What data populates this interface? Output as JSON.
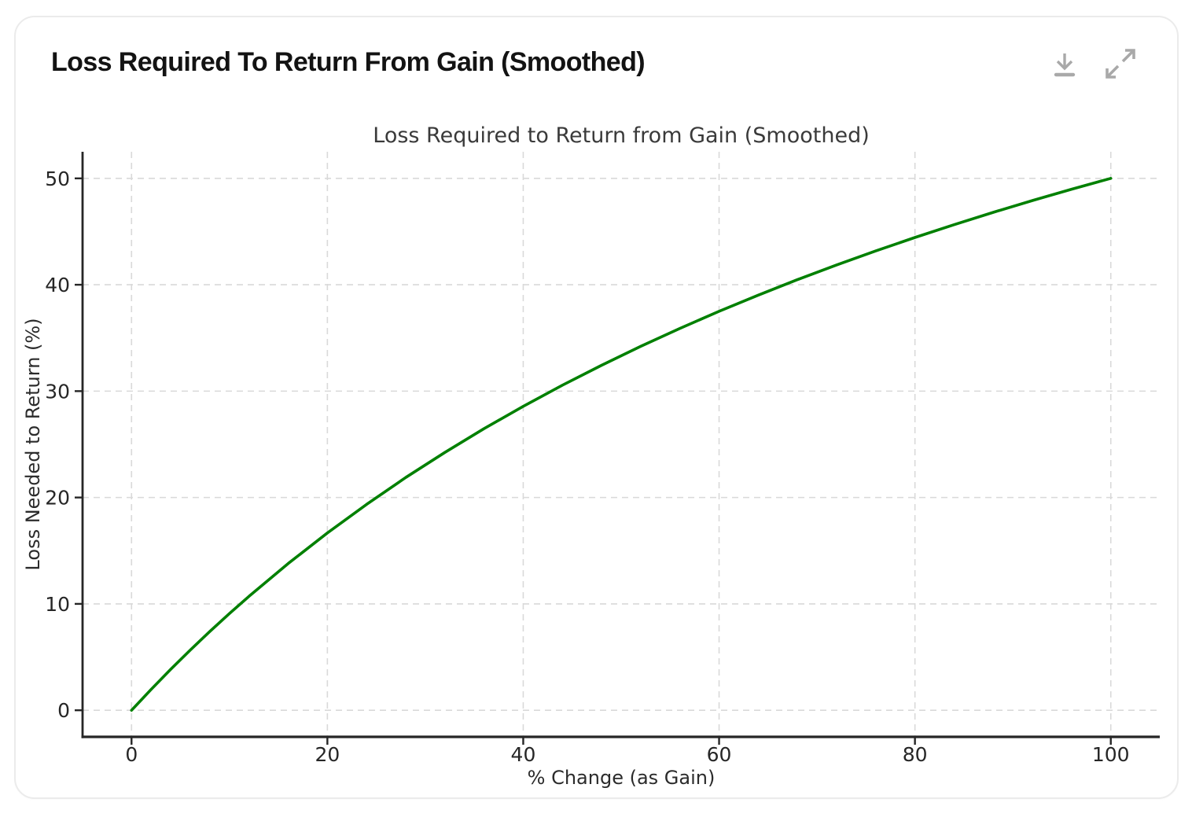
{
  "card": {
    "title": "Loss Required To Return From Gain (Smoothed)",
    "toolbar": {
      "icons": [
        "download-icon",
        "expand-icon"
      ],
      "icon_color": "#a9a9a9"
    }
  },
  "chart_data": {
    "type": "line",
    "title": "Loss Required to Return from Gain (Smoothed)",
    "xlabel": "% Change (as Gain)",
    "ylabel": "Loss Needed to Return (%)",
    "x": [
      0,
      2,
      4,
      6,
      8,
      10,
      12,
      16,
      20,
      24,
      28,
      32,
      36,
      40,
      44,
      48,
      52,
      56,
      60,
      64,
      68,
      72,
      76,
      80,
      84,
      88,
      92,
      96,
      100
    ],
    "y": [
      0,
      1.96,
      3.85,
      5.66,
      7.41,
      9.09,
      10.71,
      13.79,
      16.67,
      19.35,
      21.88,
      24.24,
      26.47,
      28.57,
      30.56,
      32.43,
      34.21,
      35.9,
      37.5,
      39.02,
      40.48,
      41.86,
      43.18,
      44.44,
      45.65,
      46.81,
      47.92,
      48.98,
      50
    ],
    "xticks": [
      0,
      20,
      40,
      60,
      80,
      100
    ],
    "yticks": [
      0,
      10,
      20,
      30,
      40,
      50
    ],
    "xlim": [
      -5,
      105
    ],
    "ylim": [
      -2.5,
      52.5
    ],
    "line_color": "#008000",
    "grid": true,
    "grid_style": "dashed",
    "legend": "none"
  }
}
